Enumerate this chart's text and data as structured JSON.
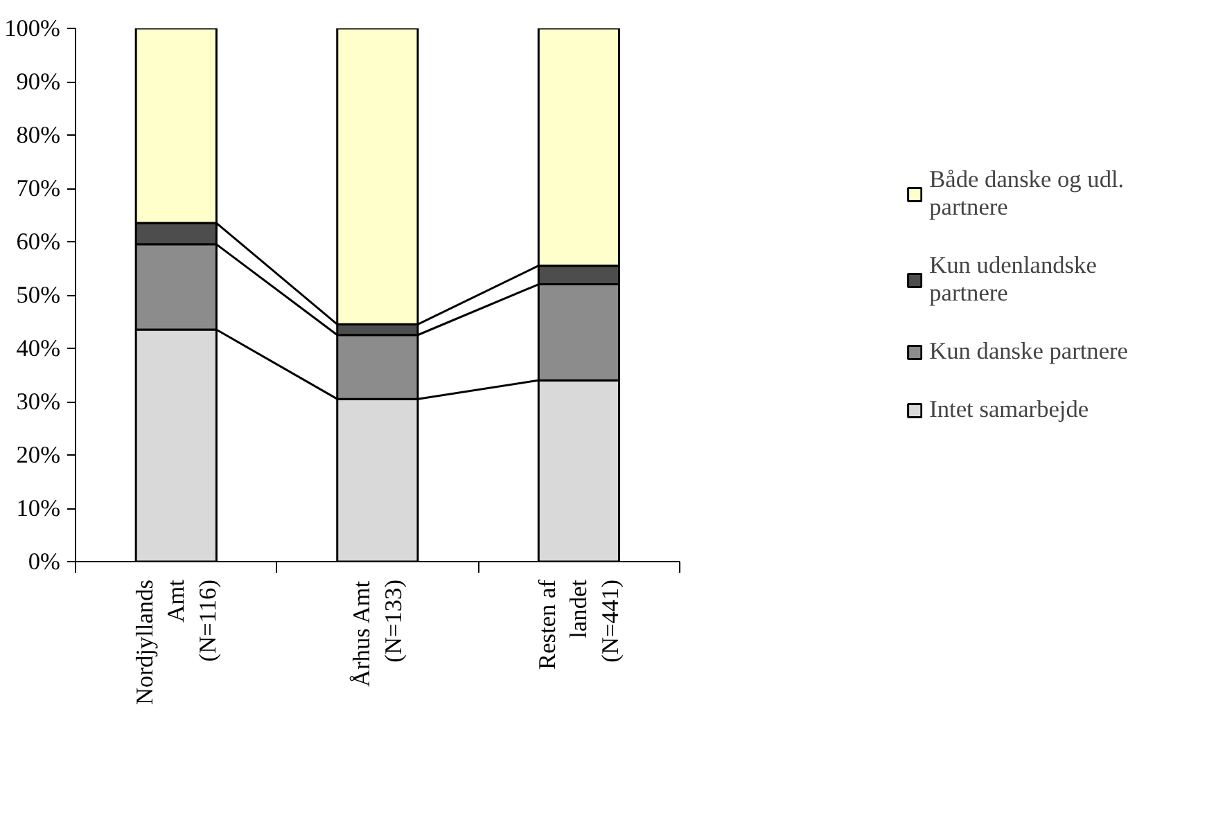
{
  "chart_data": {
    "type": "bar",
    "stacked": true,
    "categories": [
      "Nordjyllands Amt (N=116)",
      "Århus Amt (N=133)",
      "Resten af landet (N=441)"
    ],
    "series": [
      {
        "name": "Intet samarbejde",
        "color": "#d9d9d9",
        "values": [
          43.5,
          30.5,
          34
        ]
      },
      {
        "name": "Kun danske partnere",
        "color": "#8c8c8c",
        "values": [
          16,
          12,
          18
        ]
      },
      {
        "name": "Kun udenlandske partnere",
        "color": "#4d4d4d",
        "values": [
          4,
          2,
          3.5
        ]
      },
      {
        "name": "Både danske og udl. partnere",
        "color": "#ffffcc",
        "values": [
          36.5,
          55.5,
          44.5
        ]
      }
    ],
    "ylim": [
      0,
      100
    ],
    "yticks": [
      {
        "value": 0,
        "label": "0%"
      },
      {
        "value": 10,
        "label": "10%"
      },
      {
        "value": 20,
        "label": "20%"
      },
      {
        "value": 30,
        "label": "30%"
      },
      {
        "value": 40,
        "label": "40%"
      },
      {
        "value": 50,
        "label": "50%"
      },
      {
        "value": 60,
        "label": "60%"
      },
      {
        "value": 70,
        "label": "70%"
      },
      {
        "value": 80,
        "label": "80%"
      },
      {
        "value": 90,
        "label": "90%"
      },
      {
        "value": 100,
        "label": "100%"
      }
    ],
    "grid": false,
    "legend": "right"
  }
}
